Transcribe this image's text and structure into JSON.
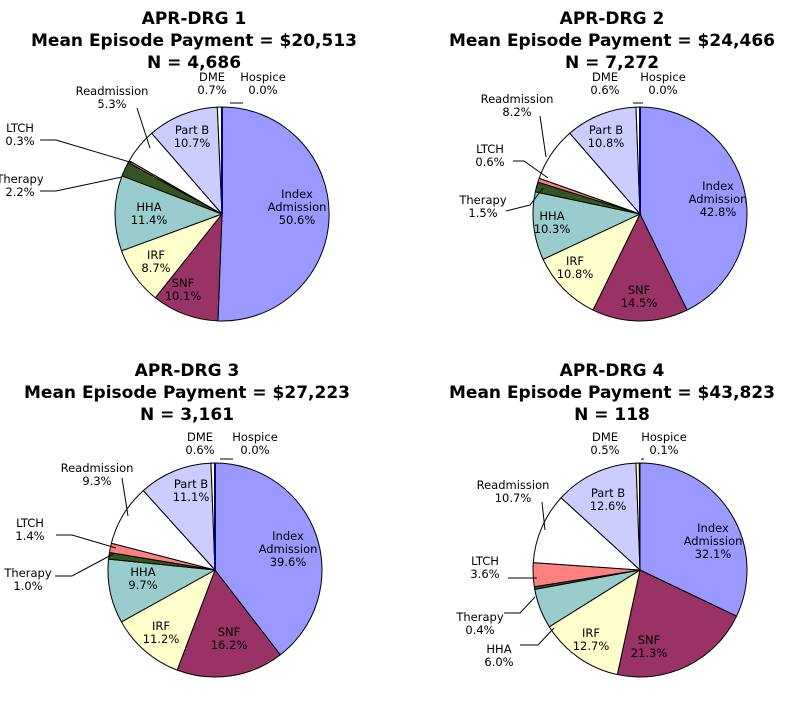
{
  "colors": {
    "Index Admission": "#9999ff",
    "SNF": "#993366",
    "IRF": "#ffffcc",
    "HHA": "#99cccc",
    "Therapy": "#335522",
    "LTCH": "#ff8080",
    "Readmission": "#ffffff",
    "Part B": "#ccccff",
    "DME": "#ffffcc",
    "Hospice": "#000080"
  },
  "chart_data": [
    {
      "type": "pie",
      "title": "APR-DRG 1",
      "subtitle": "Mean Episode Payment = $20,513",
      "n_label": "N = 4,686",
      "categories": [
        "Index Admission",
        "SNF",
        "IRF",
        "HHA",
        "Therapy",
        "LTCH",
        "Readmission",
        "Part B",
        "DME",
        "Hospice"
      ],
      "values": [
        50.6,
        10.1,
        8.7,
        11.4,
        2.2,
        0.3,
        5.3,
        10.7,
        0.7,
        0.0
      ],
      "labels": [
        {
          "name": "Index",
          "name2": "Admission",
          "value": "50.6%"
        },
        {
          "name": "SNF",
          "value": "10.1%"
        },
        {
          "name": "IRF",
          "value": "8.7%"
        },
        {
          "name": "HHA",
          "value": "11.4%"
        },
        {
          "name": "Therapy",
          "value": "2.2%"
        },
        {
          "name": "LTCH",
          "value": "0.3%"
        },
        {
          "name": "Readmission",
          "value": "5.3%"
        },
        {
          "name": "Part B",
          "value": "10.7%"
        },
        {
          "name": "DME",
          "value": "0.7%"
        },
        {
          "name": "Hospice",
          "value": "0.0%"
        }
      ]
    },
    {
      "type": "pie",
      "title": "APR-DRG 2",
      "subtitle": "Mean Episode Payment = $24,466",
      "n_label": "N = 7,272",
      "categories": [
        "Index Admission",
        "SNF",
        "IRF",
        "HHA",
        "Therapy",
        "LTCH",
        "Readmission",
        "Part B",
        "DME",
        "Hospice"
      ],
      "values": [
        42.8,
        14.5,
        10.8,
        10.3,
        1.5,
        0.6,
        8.2,
        10.8,
        0.6,
        0.0
      ],
      "labels": [
        {
          "name": "Index",
          "name2": "Admission",
          "value": "42.8%"
        },
        {
          "name": "SNF",
          "value": "14.5%"
        },
        {
          "name": "IRF",
          "value": "10.8%"
        },
        {
          "name": "HHA",
          "value": "10.3%"
        },
        {
          "name": "Therapy",
          "value": "1.5%"
        },
        {
          "name": "LTCH",
          "value": "0.6%"
        },
        {
          "name": "Readmission",
          "value": "8.2%"
        },
        {
          "name": "Part B",
          "value": "10.8%"
        },
        {
          "name": "DME",
          "value": "0.6%"
        },
        {
          "name": "Hospice",
          "value": "0.0%"
        }
      ]
    },
    {
      "type": "pie",
      "title": "APR-DRG 3",
      "subtitle": "Mean Episode Payment = $27,223",
      "n_label": "N = 3,161",
      "categories": [
        "Index Admission",
        "SNF",
        "IRF",
        "HHA",
        "Therapy",
        "LTCH",
        "Readmission",
        "Part B",
        "DME",
        "Hospice"
      ],
      "values": [
        39.6,
        16.2,
        11.2,
        9.7,
        1.0,
        1.4,
        9.3,
        11.1,
        0.6,
        0.0
      ],
      "labels": [
        {
          "name": "Index",
          "name2": "Admission",
          "value": "39.6%"
        },
        {
          "name": "SNF",
          "value": "16.2%"
        },
        {
          "name": "IRF",
          "value": "11.2%"
        },
        {
          "name": "HHA",
          "value": "9.7%"
        },
        {
          "name": "Therapy",
          "value": "1.0%"
        },
        {
          "name": "LTCH",
          "value": "1.4%"
        },
        {
          "name": "Readmission",
          "value": "9.3%"
        },
        {
          "name": "Part B",
          "value": "11.1%"
        },
        {
          "name": "DME",
          "value": "0.6%"
        },
        {
          "name": "Hospice",
          "value": "0.0%"
        }
      ]
    },
    {
      "type": "pie",
      "title": "APR-DRG 4",
      "subtitle": "Mean Episode Payment = $43,823",
      "n_label": "N = 118",
      "categories": [
        "Index Admission",
        "SNF",
        "IRF",
        "HHA",
        "Therapy",
        "LTCH",
        "Readmission",
        "Part B",
        "DME",
        "Hospice"
      ],
      "values": [
        32.1,
        21.3,
        12.7,
        6.0,
        0.4,
        3.6,
        10.7,
        12.6,
        0.5,
        0.1
      ],
      "labels": [
        {
          "name": "Index",
          "name2": "Admission",
          "value": "32.1%"
        },
        {
          "name": "SNF",
          "value": "21.3%"
        },
        {
          "name": "IRF",
          "value": "12.7%"
        },
        {
          "name": "HHA",
          "value": "6.0%"
        },
        {
          "name": "Therapy",
          "value": "0.4%"
        },
        {
          "name": "LTCH",
          "value": "3.6%"
        },
        {
          "name": "Readmission",
          "value": "10.7%"
        },
        {
          "name": "Part B",
          "value": "12.6%"
        },
        {
          "name": "DME",
          "value": "0.5%"
        },
        {
          "name": "Hospice",
          "value": "0.1%"
        }
      ]
    }
  ]
}
